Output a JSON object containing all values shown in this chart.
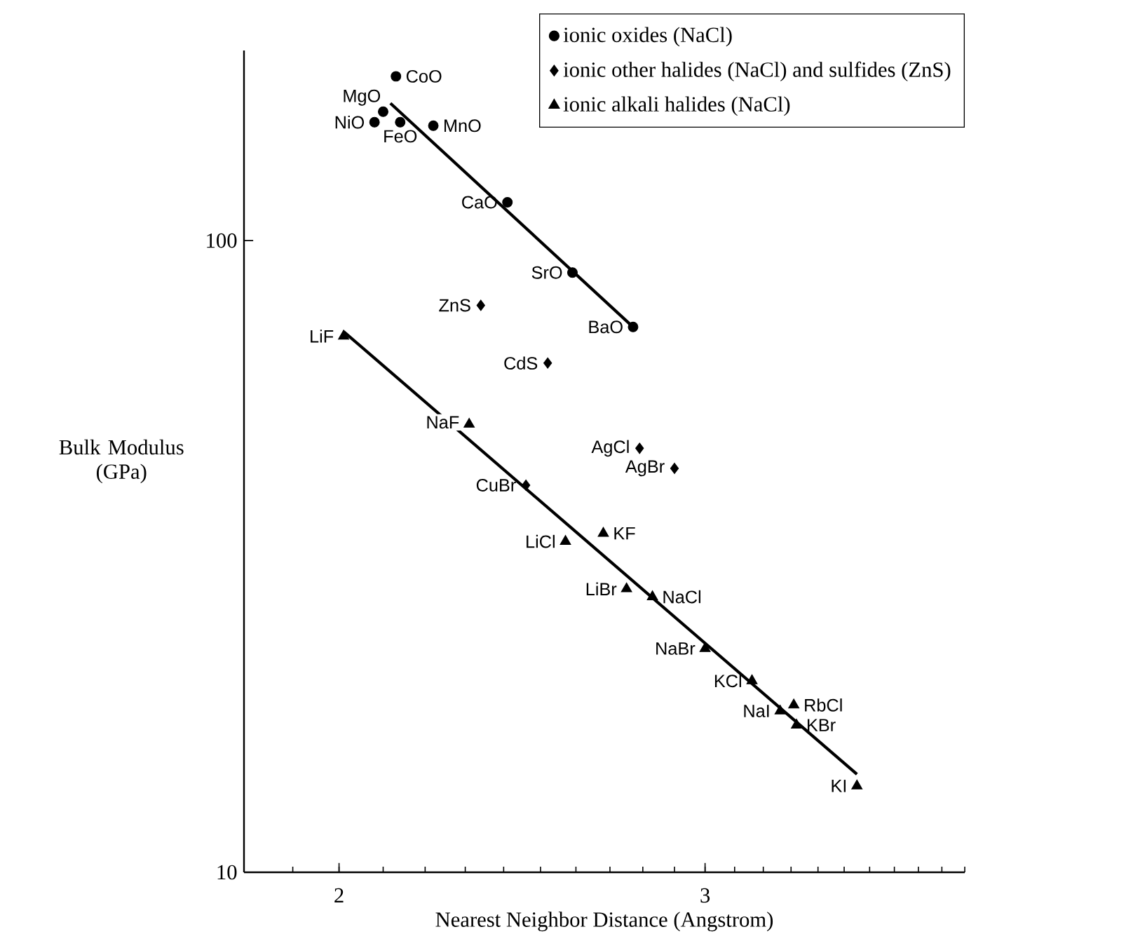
{
  "chart_data": {
    "type": "scatter",
    "xlabel": "Nearest Neighbor Distance (Angstrom)",
    "ylabel": "Bulk Modulus (GPa)",
    "log": "xy",
    "xlim": [
      1.8,
      4
    ],
    "ylim": [
      10,
      200
    ],
    "xticks": [
      2,
      3
    ],
    "yticks": [
      10,
      100
    ],
    "legend": "top right",
    "grid": false,
    "series": [
      {
        "name": "ionic oxides (NaCl)",
        "marker": "circle",
        "color": "#000000",
        "x": [
          2.13,
          2.1,
          2.08,
          2.14,
          2.22,
          2.41,
          2.59,
          2.77
        ],
        "values": [
          182,
          160,
          154,
          154,
          152,
          115,
          89,
          73
        ]
      },
      {
        "name": "ionic other halides (NaCl) and sulfides (ZnS)",
        "marker": "diamond",
        "color": "#000000",
        "x": [
          2.34,
          2.52,
          2.79,
          2.9,
          2.46
        ],
        "values": [
          79,
          64,
          46.9,
          43.6,
          41
        ]
      },
      {
        "name": "ionic alkali halides (NaCl)",
        "marker": "triangle",
        "color": "#000000",
        "x": [
          2.01,
          2.31,
          2.57,
          2.68,
          2.75,
          2.83,
          3.0,
          3.16,
          3.26,
          3.31,
          3.32,
          3.55
        ],
        "values": [
          70.6,
          51.2,
          33.4,
          34.4,
          28.1,
          27.3,
          22.6,
          20.1,
          18.0,
          18.4,
          17.1,
          13.7
        ]
      },
      {
        "type": "line",
        "marker": "none",
        "color": "#000000",
        "x": [
          2.117,
          2.77
        ],
        "values": [
          165,
          73
        ]
      },
      {
        "type": "line",
        "marker": "none",
        "color": "#000000",
        "x": [
          2.01,
          3.55
        ],
        "values": [
          71.8,
          14.3
        ]
      }
    ],
    "annotations": [
      {
        "text": "CoO",
        "x": 2.13,
        "y": 182
      },
      {
        "text": "MgO",
        "x": 2.1,
        "y": 160
      },
      {
        "text": "NiO",
        "x": 2.08,
        "y": 154
      },
      {
        "text": "FeO",
        "x": 2.14,
        "y": 154
      },
      {
        "text": "MnO",
        "x": 2.22,
        "y": 152
      },
      {
        "text": "CaO",
        "x": 2.41,
        "y": 115
      },
      {
        "text": "SrO",
        "x": 2.59,
        "y": 89
      },
      {
        "text": "BaO",
        "x": 2.77,
        "y": 73
      },
      {
        "text": "ZnS",
        "x": 2.34,
        "y": 79
      },
      {
        "text": "CdS",
        "x": 2.52,
        "y": 64
      },
      {
        "text": "AgCl",
        "x": 2.79,
        "y": 46.9
      },
      {
        "text": "AgBr",
        "x": 2.9,
        "y": 43.6
      },
      {
        "text": "CuBr",
        "x": 2.46,
        "y": 41
      },
      {
        "text": "LiF",
        "x": 2.01,
        "y": 70.6
      },
      {
        "text": "NaF",
        "x": 2.31,
        "y": 51.2
      },
      {
        "text": "LiCl",
        "x": 2.57,
        "y": 33.4
      },
      {
        "text": "KF",
        "x": 2.68,
        "y": 34.4
      },
      {
        "text": "LiBr",
        "x": 2.75,
        "y": 28.1
      },
      {
        "text": "NaCl",
        "x": 2.83,
        "y": 27.3
      },
      {
        "text": "NaBr",
        "x": 3.0,
        "y": 22.6
      },
      {
        "text": "KCl",
        "x": 3.16,
        "y": 20.1
      },
      {
        "text": "NaI",
        "x": 3.26,
        "y": 18.0
      },
      {
        "text": "RbCl",
        "x": 3.31,
        "y": 18.4
      },
      {
        "text": "KBr",
        "x": 3.32,
        "y": 17.1
      },
      {
        "text": "KI",
        "x": 3.55,
        "y": 13.7
      }
    ]
  }
}
